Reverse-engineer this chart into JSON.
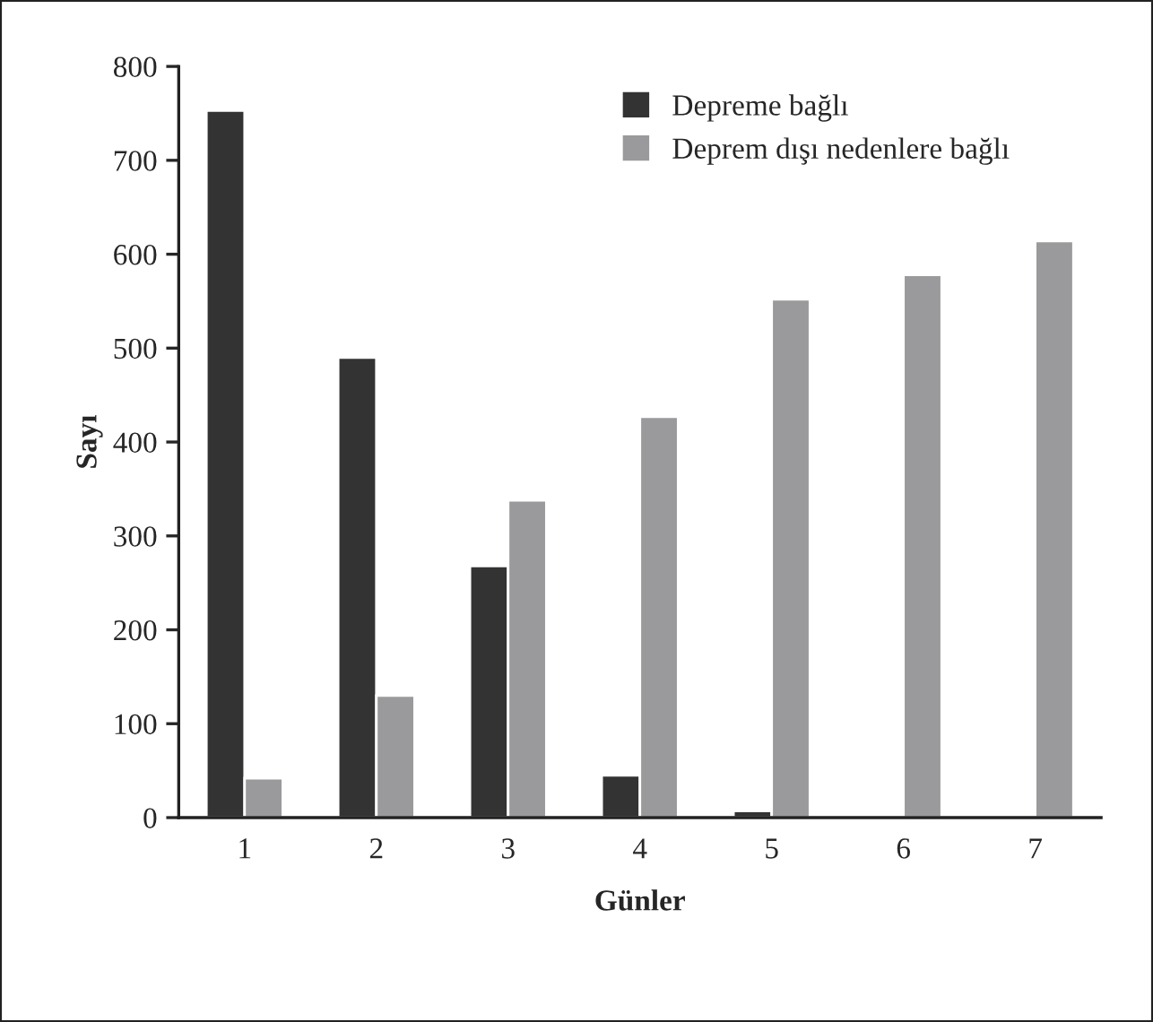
{
  "chart_data": {
    "type": "bar",
    "xlabel": "Günler",
    "ylabel": "Sayı",
    "categories": [
      "1",
      "2",
      "3",
      "4",
      "5",
      "6",
      "7"
    ],
    "series": [
      {
        "name": "Depreme bağlı",
        "color": "#333333",
        "values": [
          753,
          490,
          268,
          45,
          7,
          2,
          1
        ]
      },
      {
        "name": "Deprem dışı nedenlere bağlı",
        "color": "#9a9a9c",
        "values": [
          42,
          130,
          338,
          427,
          552,
          578,
          614
        ]
      }
    ],
    "ylim": [
      0,
      800
    ],
    "yticks": [
      0,
      100,
      200,
      300,
      400,
      500,
      600,
      700,
      800
    ],
    "grid": false,
    "legend": "top right"
  }
}
